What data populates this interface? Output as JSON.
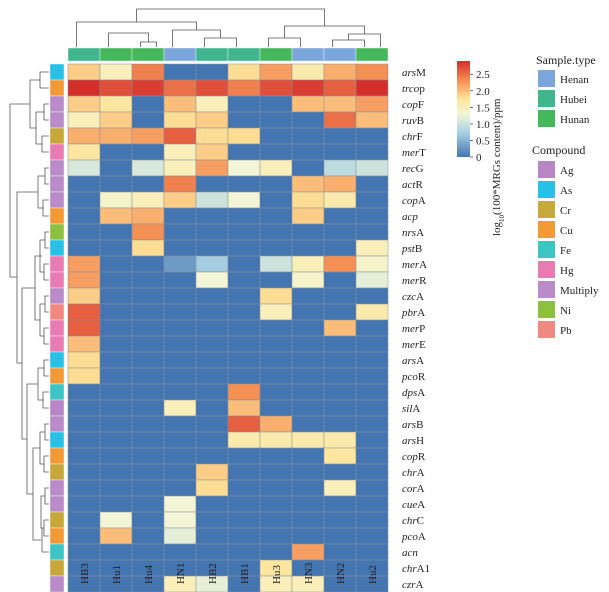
{
  "chart_data": {
    "type": "heatmap",
    "columns": [
      "HB3",
      "Hu1",
      "Hu4",
      "HN1",
      "HB2",
      "HB1",
      "Hu3",
      "HN3",
      "HN2",
      "Hu2"
    ],
    "rows": [
      {
        "gene": "ars",
        "suffix": "M",
        "compound": "As"
      },
      {
        "gene": "trco",
        "suffix": "p",
        "compound": "Cu"
      },
      {
        "gene": "cop",
        "suffix": "F",
        "compound": "Multiply"
      },
      {
        "gene": "ruv",
        "suffix": "B",
        "compound": "Multiply"
      },
      {
        "gene": "chr",
        "suffix": "F",
        "compound": "Cr"
      },
      {
        "gene": "mer",
        "suffix": "T",
        "compound": "Hg"
      },
      {
        "gene": "rec",
        "suffix": "G",
        "compound": "Multiply"
      },
      {
        "gene": "act",
        "suffix": "R",
        "compound": "Multiply"
      },
      {
        "gene": "cop",
        "suffix": "A",
        "compound": "Multiply"
      },
      {
        "gene": "acp",
        "suffix": "",
        "compound": "Cu"
      },
      {
        "gene": "nrs",
        "suffix": "A",
        "compound": "Ni"
      },
      {
        "gene": "pst",
        "suffix": "B",
        "compound": "As"
      },
      {
        "gene": "mer",
        "suffix": "A",
        "compound": "Hg"
      },
      {
        "gene": "mer",
        "suffix": "R",
        "compound": "Hg"
      },
      {
        "gene": "czc",
        "suffix": "A",
        "compound": "Multiply"
      },
      {
        "gene": "pbr",
        "suffix": "A",
        "compound": "Pb"
      },
      {
        "gene": "mer",
        "suffix": "P",
        "compound": "Hg"
      },
      {
        "gene": "mer",
        "suffix": "E",
        "compound": "Hg"
      },
      {
        "gene": "ars",
        "suffix": "A",
        "compound": "As"
      },
      {
        "gene": "pco",
        "suffix": "R",
        "compound": "Cu"
      },
      {
        "gene": "dps",
        "suffix": "A",
        "compound": "Fe"
      },
      {
        "gene": "sil",
        "suffix": "A",
        "compound": "Ag"
      },
      {
        "gene": "ars",
        "suffix": "B",
        "compound": "Multiply"
      },
      {
        "gene": "ars",
        "suffix": "H",
        "compound": "As"
      },
      {
        "gene": "cop",
        "suffix": "R",
        "compound": "Cu"
      },
      {
        "gene": "chr",
        "suffix": "A",
        "compound": "Cr"
      },
      {
        "gene": "cor",
        "suffix": "A",
        "compound": "Multiply"
      },
      {
        "gene": "cue",
        "suffix": "A",
        "compound": "Multiply"
      },
      {
        "gene": "chr",
        "suffix": "C",
        "compound": "Cr"
      },
      {
        "gene": "pco",
        "suffix": "A",
        "compound": "Cu"
      },
      {
        "gene": "acn",
        "suffix": "",
        "compound": "Fe"
      },
      {
        "gene": "chr",
        "suffix": "A1",
        "compound": "Cr"
      },
      {
        "gene": "czr",
        "suffix": "A",
        "compound": "Multiply"
      }
    ],
    "values": [
      [
        1.9,
        1.5,
        2.4,
        0,
        0,
        1.8,
        2.2,
        1.6,
        2.1,
        2.3
      ],
      [
        2.9,
        2.7,
        2.8,
        2.5,
        2.7,
        2.4,
        2.7,
        2.8,
        2.6,
        2.9
      ],
      [
        1.9,
        1.7,
        0,
        2.0,
        1.5,
        0,
        0,
        2.0,
        2.0,
        2.2
      ],
      [
        1.5,
        1.9,
        0,
        1.8,
        1.9,
        0,
        0,
        0,
        2.5,
        2.0
      ],
      [
        2.1,
        2.1,
        2.2,
        2.6,
        1.8,
        1.8,
        0,
        0,
        0,
        0
      ],
      [
        1.7,
        0,
        0,
        1.5,
        1.9,
        0,
        0,
        0,
        0,
        0
      ],
      [
        1.1,
        0,
        1.1,
        1.5,
        2.2,
        1.3,
        1.5,
        0,
        0.9,
        1.0
      ],
      [
        0,
        0,
        0,
        2.4,
        0,
        0,
        0,
        2.0,
        2.1,
        0
      ],
      [
        0,
        1.4,
        1.5,
        1.9,
        1.0,
        1.3,
        0,
        1.8,
        1.6,
        0
      ],
      [
        0,
        2.0,
        2.1,
        0,
        0,
        0,
        0,
        1.9,
        0,
        0
      ],
      [
        0,
        0,
        2.3,
        0,
        0,
        0,
        0,
        0,
        0,
        0
      ],
      [
        0,
        0,
        1.8,
        0,
        0,
        0,
        0,
        0,
        0,
        1.5
      ],
      [
        2.2,
        0,
        0,
        0.3,
        0.7,
        0,
        1.0,
        1.5,
        2.3,
        1.4
      ],
      [
        2.2,
        0,
        0,
        0,
        1.3,
        0,
        0,
        1.4,
        0,
        1.2
      ],
      [
        1.9,
        0,
        0,
        0,
        0,
        0,
        1.8,
        0,
        0,
        0
      ],
      [
        2.6,
        0,
        0,
        0,
        0,
        0,
        1.5,
        0,
        0,
        1.6
      ],
      [
        2.6,
        0,
        0,
        0,
        0,
        0,
        0,
        0,
        2.0,
        0
      ],
      [
        2.0,
        0,
        0,
        0,
        0,
        0,
        0,
        0,
        0,
        0
      ],
      [
        1.8,
        0,
        0,
        0,
        0,
        0,
        0,
        0,
        0,
        0
      ],
      [
        1.8,
        0,
        0,
        0,
        0,
        0,
        0,
        0,
        0,
        0
      ],
      [
        0,
        0,
        0,
        0,
        0,
        2.3,
        0,
        0,
        0,
        0
      ],
      [
        0,
        0,
        0,
        1.5,
        0,
        2.0,
        0,
        0,
        0,
        0
      ],
      [
        0,
        0,
        0,
        0,
        0,
        2.6,
        2.1,
        0,
        0,
        0
      ],
      [
        0,
        0,
        0,
        0,
        0,
        1.6,
        1.6,
        1.6,
        1.6,
        0
      ],
      [
        0,
        0,
        0,
        0,
        0,
        0,
        0,
        0,
        1.7,
        0
      ],
      [
        0,
        0,
        0,
        0,
        1.9,
        0,
        0,
        0,
        0,
        0
      ],
      [
        0,
        0,
        0,
        0,
        1.8,
        0,
        0,
        0,
        1.5,
        0
      ],
      [
        0,
        0,
        0,
        1.3,
        0,
        0,
        0,
        0,
        0,
        0
      ],
      [
        0,
        1.3,
        0,
        1.3,
        0,
        0,
        0,
        0,
        0,
        0
      ],
      [
        0,
        2.0,
        0,
        1.2,
        0,
        0,
        0,
        0,
        0,
        0
      ],
      [
        0,
        0,
        0,
        0,
        0,
        0,
        0,
        2.2,
        0,
        0
      ],
      [
        0,
        0,
        0,
        0,
        0,
        0,
        1.7,
        0,
        0,
        0
      ],
      [
        0,
        0,
        0,
        1.5,
        1.2,
        0,
        1.5,
        1.5,
        0,
        0
      ]
    ],
    "sample_type": [
      "Hubei",
      "Hunan",
      "Hunan",
      "Henan",
      "Hubei",
      "Hubei",
      "Hunan",
      "Henan",
      "Henan",
      "Hunan"
    ],
    "colorbar": {
      "title": "log₁₀(100*MRGs content)/ppm",
      "title_prefix": "log",
      "title_sub": "10",
      "title_rest": "(100*MRGs content)/ppm",
      "min": 0,
      "max": 2.9,
      "ticks": [
        0,
        0.5,
        1.0,
        1.5,
        2.0,
        2.5
      ],
      "tick_labels": [
        "0",
        "0.5",
        "1.0",
        "1.5",
        "2.0",
        "2.5"
      ]
    },
    "legends": {
      "sample_type": {
        "title": "Sample.type",
        "items": [
          {
            "label": "Henan",
            "color": "#7ba6dc"
          },
          {
            "label": "Hubei",
            "color": "#3fb68e"
          },
          {
            "label": "Hunan",
            "color": "#46b85c"
          }
        ]
      },
      "compound": {
        "title": "Compound",
        "items": [
          {
            "label": "Ag",
            "color": "#b886c4"
          },
          {
            "label": "As",
            "color": "#29c0e6"
          },
          {
            "label": "Cr",
            "color": "#c7a83a"
          },
          {
            "label": "Cu",
            "color": "#f29a34"
          },
          {
            "label": "Fe",
            "color": "#3cc5c2"
          },
          {
            "label": "Hg",
            "color": "#e97bb3"
          },
          {
            "label": "Multiply",
            "color": "#b98cc8"
          },
          {
            "label": "Ni",
            "color": "#8cc13f"
          },
          {
            "label": "Pb",
            "color": "#f08a80"
          }
        ]
      }
    }
  }
}
